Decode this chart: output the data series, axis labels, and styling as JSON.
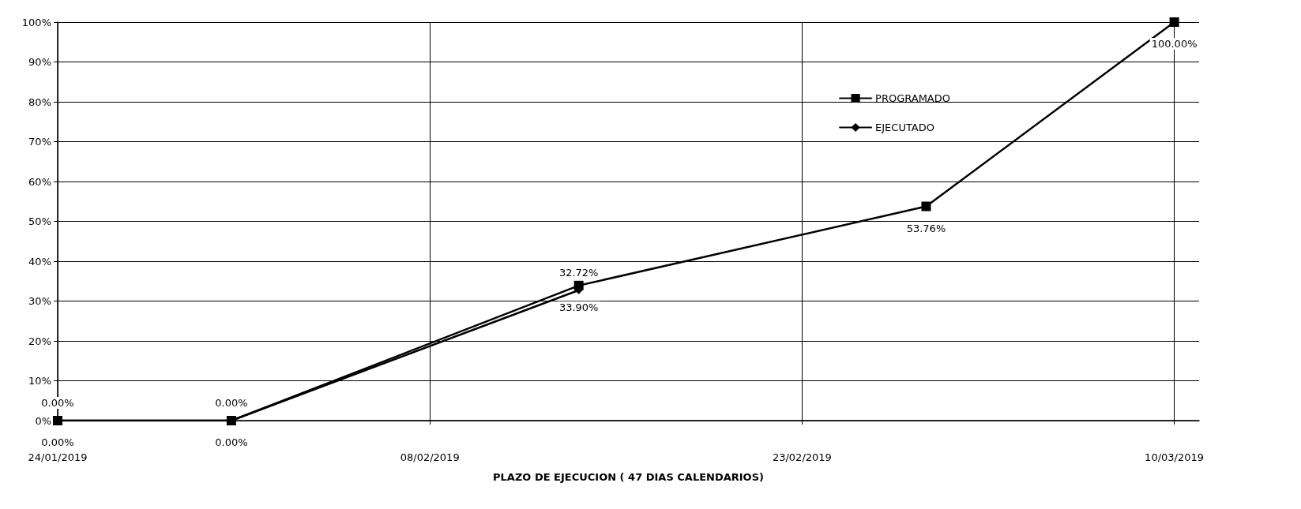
{
  "chart_data": {
    "type": "line",
    "xlabel": "PLAZO DE EJECUCION ( 47 DIAS CALENDARIOS)",
    "x": [
      "2019-01-24",
      "2019-01-31",
      "2019-02-14",
      "2019-02-28",
      "2019-03-10"
    ],
    "series": [
      {
        "name": "PROGRAMADO",
        "color": "#000000",
        "marker": "square",
        "values": [
          0,
          0,
          33.9,
          53.76,
          100
        ],
        "value_labels": [
          "0.00%",
          "0.00%",
          "33.90%",
          "53.76%",
          "100.00%"
        ]
      },
      {
        "name": "EJECUTADO",
        "color": "#000000",
        "marker": "diamond",
        "values": [
          0,
          0,
          32.72,
          null,
          null
        ],
        "value_labels": [
          "0.00%",
          "0.00%",
          "32.72%",
          null,
          null
        ]
      }
    ],
    "xlim": [
      "2019-01-24",
      "2019-03-11"
    ],
    "xticks": [
      {
        "value": "2019-01-24",
        "label": "24/01/2019"
      },
      {
        "value": "2019-02-08",
        "label": "08/02/2019"
      },
      {
        "value": "2019-02-23",
        "label": "23/02/2019"
      },
      {
        "value": "2019-03-10",
        "label": "10/03/2019"
      }
    ],
    "ylim": [
      0,
      100
    ],
    "yticks": [
      {
        "value": 0,
        "label": "0%"
      },
      {
        "value": 10,
        "label": "10%"
      },
      {
        "value": 20,
        "label": "20%"
      },
      {
        "value": 30,
        "label": "30%"
      },
      {
        "value": 40,
        "label": "40%"
      },
      {
        "value": 50,
        "label": "50%"
      },
      {
        "value": 60,
        "label": "60%"
      },
      {
        "value": 70,
        "label": "70%"
      },
      {
        "value": 80,
        "label": "80%"
      },
      {
        "value": 90,
        "label": "90%"
      },
      {
        "value": 100,
        "label": "100%"
      }
    ],
    "grid": true,
    "legend": "top right",
    "line_style": "solid"
  }
}
